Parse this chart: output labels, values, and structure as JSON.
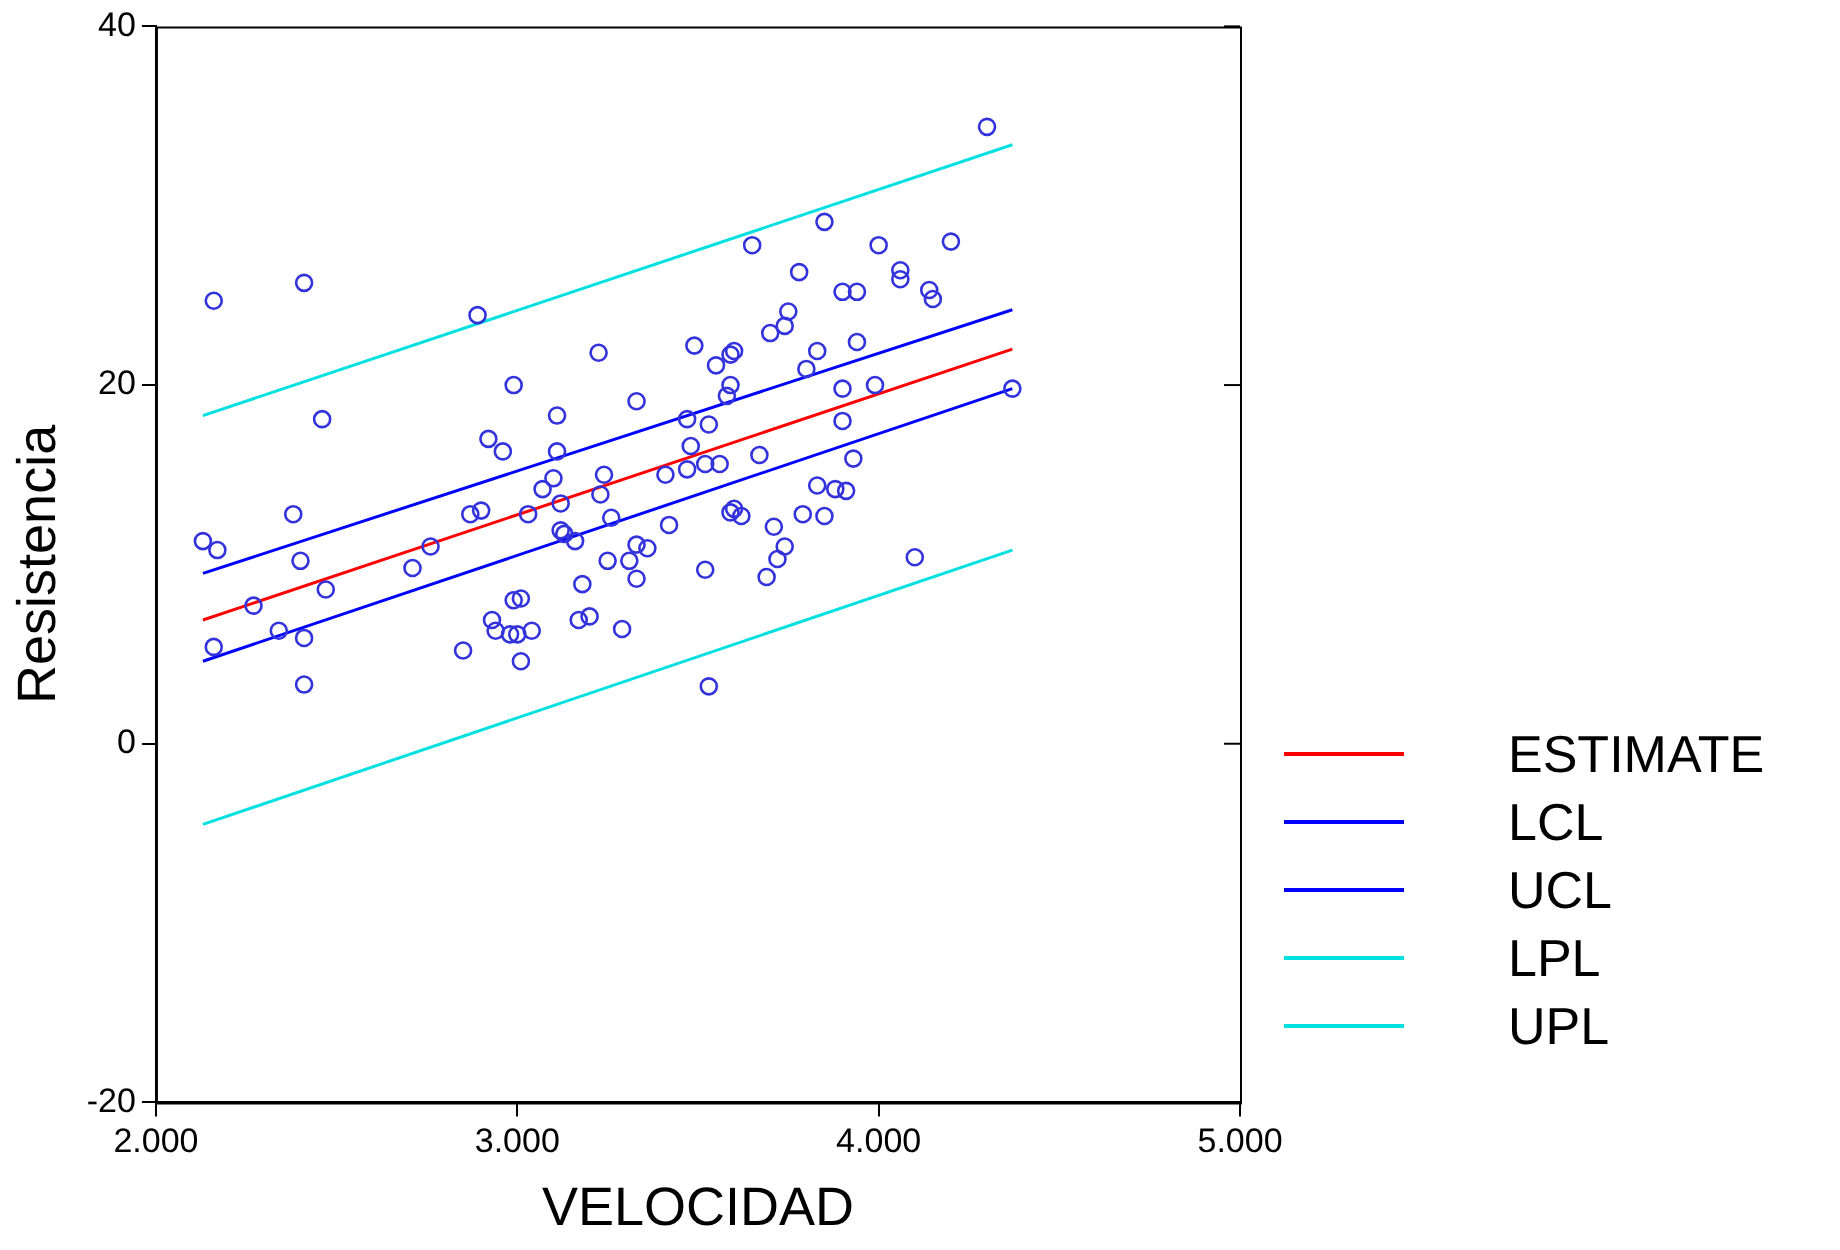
{
  "chart_data": {
    "type": "scatter",
    "xlabel": "VELOCIDAD",
    "ylabel": "Resistencia",
    "xlim": [
      2000,
      5000
    ],
    "xticks": [
      {
        "value": 2000,
        "label": "2.000"
      },
      {
        "value": 3000,
        "label": "3.000"
      },
      {
        "value": 4000,
        "label": "4.000"
      },
      {
        "value": 5000,
        "label": "5.000"
      }
    ],
    "ylim": [
      -20,
      40
    ],
    "yticks": [
      -20,
      0,
      20,
      40
    ],
    "grid": false,
    "legend": "right",
    "marker": "circle",
    "series": [
      {
        "color": "#3333dd",
        "x": [
          2160,
          2410,
          2130,
          2170,
          2460,
          2380,
          2400,
          2270,
          2160,
          2340,
          2410,
          2410,
          2470,
          2710,
          2760,
          2890,
          2990,
          2920,
          2960,
          2900,
          2870,
          3030,
          3225,
          3330,
          3110,
          3490,
          3550,
          3590,
          3580,
          3470,
          3110,
          3530,
          3100,
          3070,
          3240,
          3230,
          3120,
          3260,
          3410,
          3470,
          3520,
          3560,
          3480,
          3120,
          3160,
          3130,
          3420,
          3330,
          3360,
          3250,
          3310,
          3330,
          3180,
          3520,
          2990,
          3010,
          2930,
          2940,
          2980,
          3000,
          3040,
          3170,
          3200,
          3290,
          2850,
          3010,
          3530,
          4300,
          3850,
          3650,
          4000,
          4200,
          3780,
          4060,
          4060,
          3900,
          3940,
          4140,
          4150,
          3750,
          3740,
          3700,
          3940,
          3600,
          3830,
          3800,
          3590,
          3900,
          3990,
          4370,
          3900,
          3930,
          3670,
          3830,
          3880,
          3910,
          3600,
          3590,
          3620,
          3790,
          3850,
          3710,
          3740,
          3720,
          3690,
          4100
        ],
        "values": [
          24.7,
          25.7,
          11.3,
          10.8,
          18.1,
          12.8,
          10.2,
          7.7,
          5.4,
          6.3,
          5.9,
          3.3,
          8.6,
          9.8,
          11.0,
          23.9,
          20.0,
          17.0,
          16.3,
          13.0,
          12.8,
          12.8,
          21.8,
          19.1,
          18.3,
          22.2,
          21.1,
          21.7,
          19.4,
          18.1,
          16.3,
          17.8,
          14.8,
          14.2,
          15.0,
          13.9,
          13.4,
          12.6,
          15.0,
          15.3,
          15.6,
          15.6,
          16.6,
          11.9,
          11.3,
          11.7,
          12.2,
          11.1,
          10.9,
          10.2,
          10.2,
          9.2,
          8.9,
          9.7,
          8.0,
          8.1,
          6.9,
          6.3,
          6.1,
          6.1,
          6.3,
          6.9,
          7.1,
          6.4,
          5.2,
          4.6,
          3.2,
          34.4,
          29.1,
          27.8,
          27.8,
          28.0,
          26.3,
          26.4,
          25.9,
          25.2,
          25.2,
          25.3,
          24.8,
          24.1,
          23.3,
          22.9,
          22.4,
          21.9,
          21.9,
          20.9,
          20.0,
          19.8,
          20.0,
          19.8,
          18.0,
          15.9,
          16.1,
          14.4,
          14.2,
          14.1,
          13.1,
          12.9,
          12.7,
          12.8,
          12.7,
          12.1,
          11.0,
          10.3,
          9.3,
          10.4
        ]
      },
      {
        "type": "line",
        "name": "ESTIMATE",
        "marker": "none",
        "color": "#ff0000",
        "x": [
          2130,
          4370
        ],
        "values": [
          6.9,
          22.0
        ]
      },
      {
        "type": "line",
        "name": "LCL",
        "marker": "none",
        "color": "#0000ff",
        "x": [
          2130,
          4370
        ],
        "values": [
          4.6,
          19.8
        ]
      },
      {
        "type": "line",
        "name": "UCL",
        "marker": "none",
        "color": "#0000ff",
        "x": [
          2130,
          4370
        ],
        "values": [
          9.5,
          24.2
        ]
      },
      {
        "type": "line",
        "name": "LPL",
        "marker": "none",
        "color": "#00e0e0",
        "x": [
          2130,
          4370
        ],
        "values": [
          -4.5,
          10.8
        ]
      },
      {
        "type": "line",
        "name": "UPL",
        "marker": "none",
        "color": "#00e0e0",
        "x": [
          2130,
          4370
        ],
        "values": [
          18.3,
          33.4
        ]
      }
    ]
  }
}
